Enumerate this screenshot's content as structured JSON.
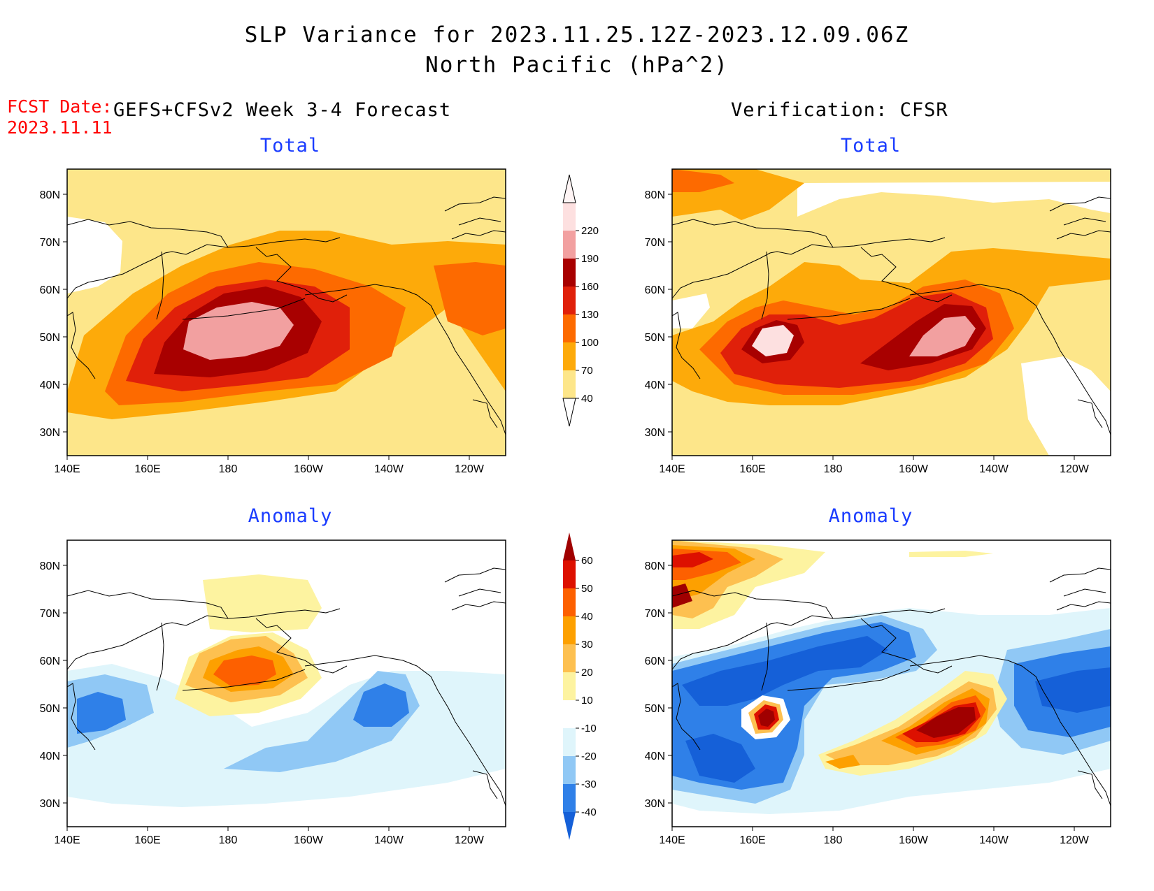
{
  "header": {
    "title_line1": "SLP Variance for 2023.11.25.12Z-2023.12.09.06Z",
    "title_line2": "North Pacific (hPa^2)",
    "fcst_label": "FCST Date:",
    "fcst_date": "2023.11.11",
    "left_caption": "GEFS+CFSv2 Week 3-4 Forecast",
    "right_caption": "Verification: CFSR"
  },
  "panels": {
    "total_title": "Total",
    "anomaly_title": "Anomaly",
    "lat_labels": [
      "80N",
      "70N",
      "60N",
      "50N",
      "40N",
      "30N"
    ],
    "lon_labels": [
      "140E",
      "160E",
      "180",
      "160W",
      "140W",
      "120W"
    ]
  },
  "colorbar_total": {
    "levels": [
      "40",
      "70",
      "100",
      "130",
      "160",
      "190",
      "220"
    ],
    "colors": [
      "#fde68a",
      "#fdaa0a",
      "#fd6a00",
      "#e0200a",
      "#a80000",
      "#f2a0a0",
      "#fde0e0"
    ]
  },
  "colorbar_anomaly": {
    "levels": [
      "-40",
      "-30",
      "-20",
      "-10",
      "10",
      "20",
      "30",
      "40",
      "50",
      "60"
    ],
    "colors": [
      "#1560d8",
      "#2f80e8",
      "#90c8f5",
      "#dff5fb",
      "#ffffff",
      "#fdf3a0",
      "#fdc050",
      "#fda000",
      "#fd6000",
      "#dd1000",
      "#a00000"
    ]
  }
}
